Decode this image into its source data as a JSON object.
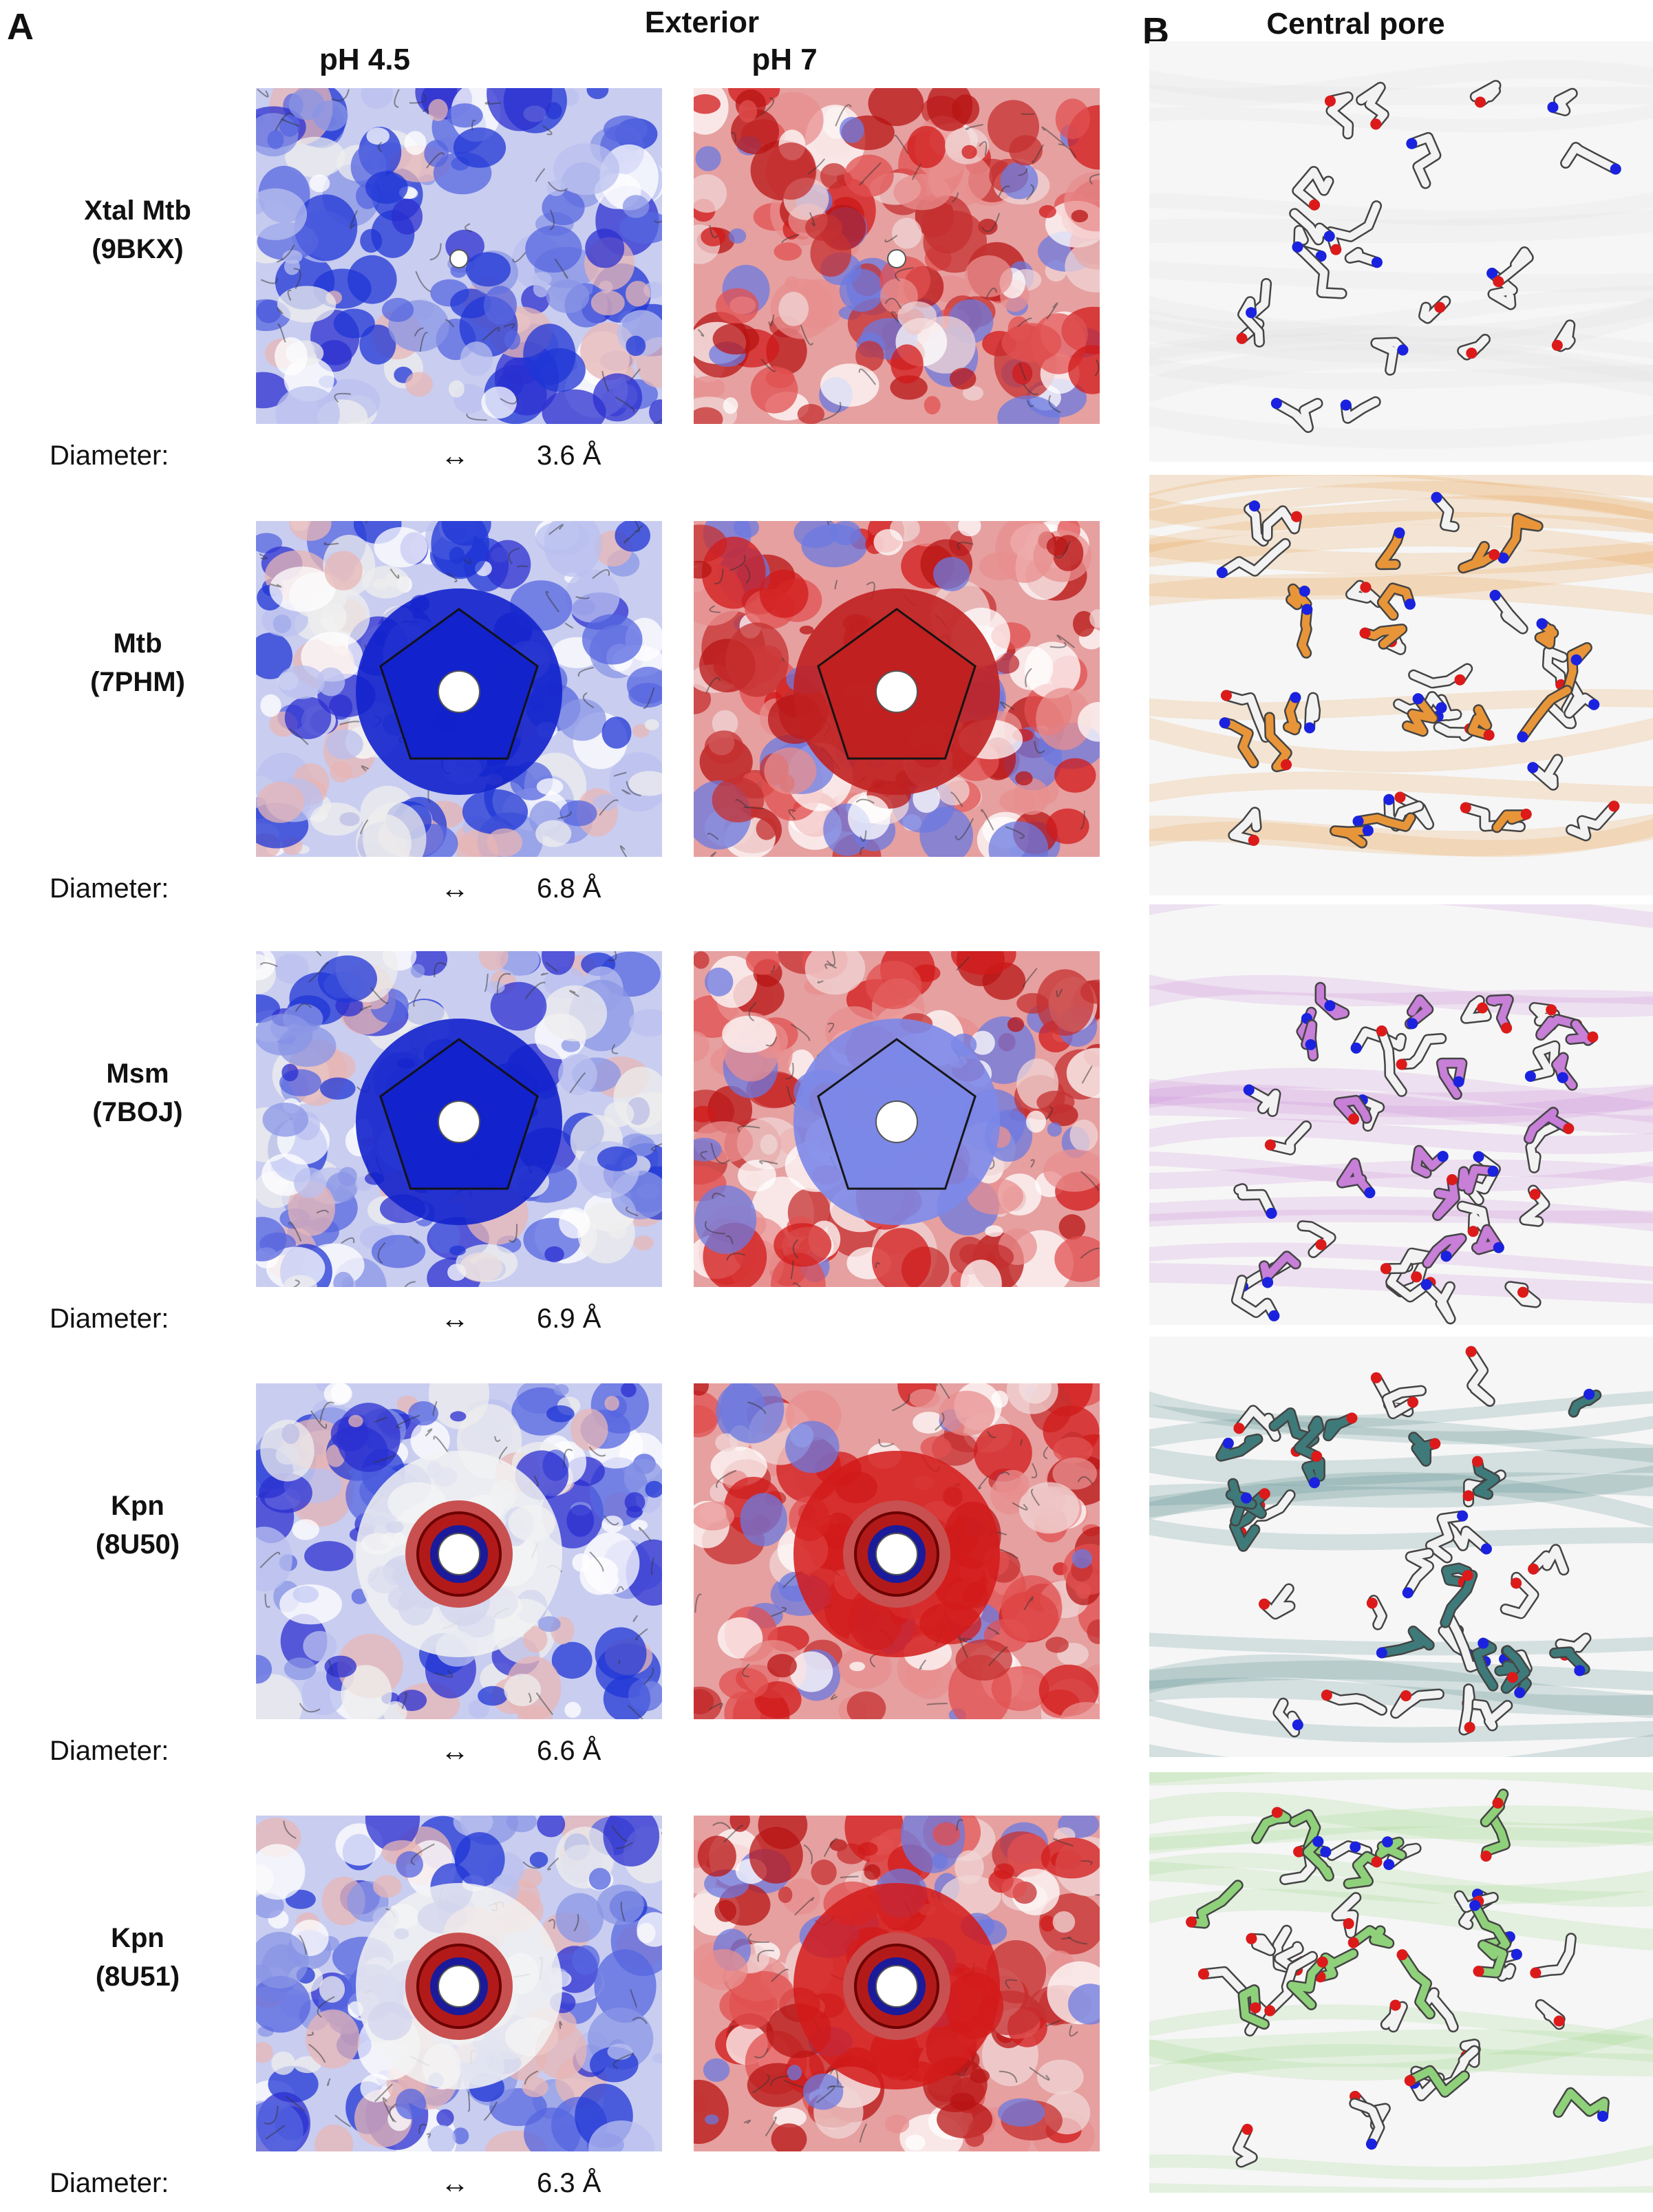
{
  "panel_a": {
    "letter": "A",
    "header": "Exterior",
    "columns": [
      "pH 4.5",
      "pH 7"
    ]
  },
  "panel_b": {
    "letter": "B",
    "header": "Central pore"
  },
  "diameter_label": "Diameter:",
  "diameter_arrow": "↔",
  "rows": [
    {
      "name": "Xtal Mtb",
      "pdb": "(9BKX)",
      "diameter": "3.6 Å",
      "pore_shape": "small",
      "struct_color": "#d8d8d8"
    },
    {
      "name": "Mtb",
      "pdb": "(7PHM)",
      "diameter": "6.8 Å",
      "pore_shape": "blue-star",
      "struct_color": "#e8953a"
    },
    {
      "name": "Msm",
      "pdb": "(7BOJ)",
      "diameter": "6.9 Å",
      "pore_shape": "blue-pentagon",
      "struct_color": "#c77fd8"
    },
    {
      "name": "Kpn",
      "pdb": "(8U50)",
      "diameter": "6.6 Å",
      "pore_shape": "red-ring",
      "struct_color": "#3f7a7a"
    },
    {
      "name": "Kpn",
      "pdb": "(8U51)",
      "diameter": "6.3 Å",
      "pore_shape": "red-ring",
      "struct_color": "#8fd17a"
    }
  ],
  "colors": {
    "negative": "#d81818",
    "positive": "#1428d8",
    "neutral": "#f2f2f2",
    "nitrogen": "#1a22e0",
    "oxygen": "#dd1a1a"
  }
}
